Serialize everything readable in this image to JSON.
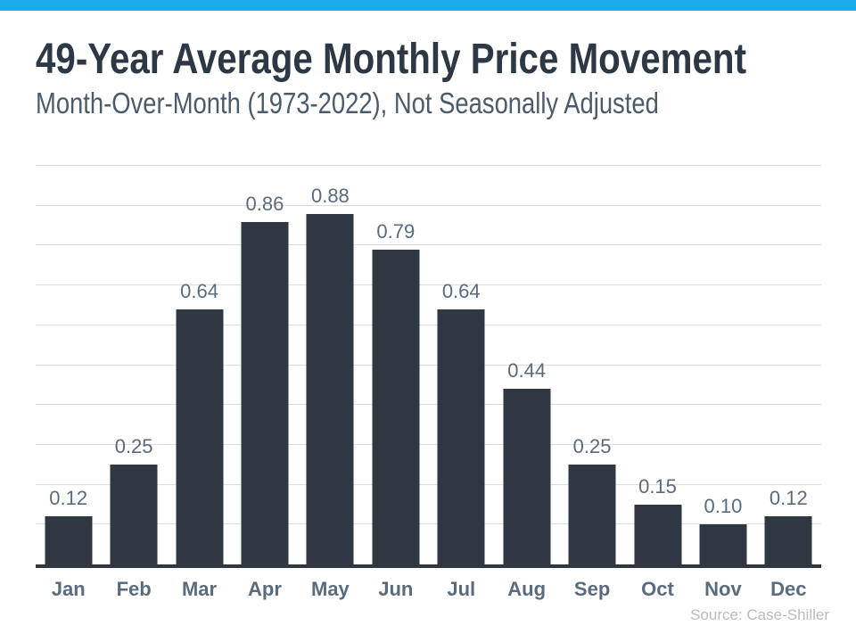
{
  "page": {
    "accent_bar_color": "#18ACEC",
    "background_color": "#FFFFFF"
  },
  "header": {
    "title": "49-Year Average Monthly Price Movement",
    "subtitle": "Month-Over-Month (1973-2022), Not Seasonally Adjusted"
  },
  "footer": {
    "source": "Source: Case-Shiller"
  },
  "chart_data": {
    "type": "bar",
    "title": "49-Year Average Monthly Price Movement",
    "subtitle": "Month-Over-Month (1973-2022), Not Seasonally Adjusted",
    "categories": [
      "Jan",
      "Feb",
      "Mar",
      "Apr",
      "May",
      "Jun",
      "Jul",
      "Aug",
      "Sep",
      "Oct",
      "Nov",
      "Dec"
    ],
    "values": [
      0.12,
      0.25,
      0.64,
      0.86,
      0.88,
      0.79,
      0.64,
      0.44,
      0.25,
      0.15,
      0.1,
      0.12
    ],
    "value_labels": [
      "0.12",
      "0.25",
      "0.64",
      "0.86",
      "0.88",
      "0.79",
      "0.64",
      "0.44",
      "0.25",
      "0.15",
      "0.10",
      "0.12"
    ],
    "xlabel": "",
    "ylabel": "",
    "ylim": [
      0,
      1.0
    ],
    "grid_interval": 0.1,
    "grid_on": true,
    "y_tick_labels_shown": false,
    "legend": "none",
    "source": "Source: Case-Shiller",
    "colors": {
      "bar": "#2E3742",
      "axis": "#2E3742",
      "gridline": "#DCDEE0",
      "data_label": "#5A6B7D",
      "month_label": "#5A6B7D",
      "title": "#2D3845",
      "subtitle": "#4C5B69",
      "source_text": "#B5BCC3"
    }
  }
}
